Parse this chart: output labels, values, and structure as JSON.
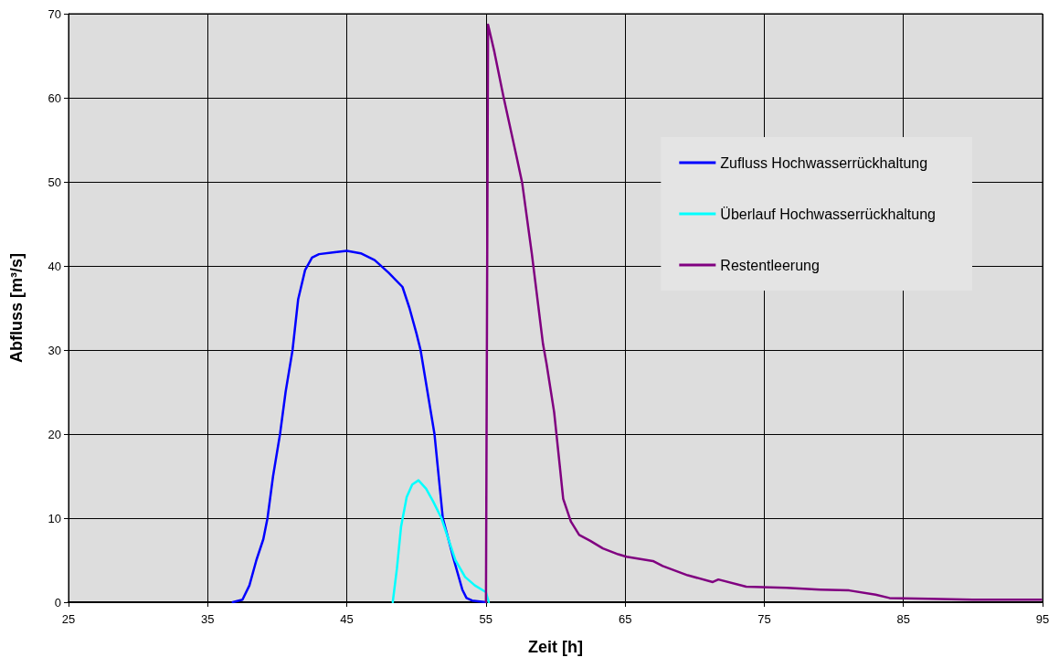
{
  "chart_data": {
    "type": "line",
    "xlabel": "Zeit [h]",
    "ylabel": "Abfluss [m³/s]",
    "xlim": [
      25,
      95
    ],
    "xticks": [
      25,
      35,
      45,
      55,
      65,
      75,
      85,
      95
    ],
    "ylim": [
      0,
      70
    ],
    "yticks": [
      0,
      10,
      20,
      30,
      40,
      50,
      60,
      70
    ],
    "grid": true,
    "legend": "right",
    "marker": "none",
    "line_style": "solid",
    "series": [
      {
        "name": "Zufluss Hochwasserrückhaltung",
        "color": "#0000ff",
        "x": [
          36.8,
          37.5,
          38,
          38.5,
          39,
          39.3,
          39.7,
          40.2,
          40.6,
          41.1,
          41.5,
          42,
          42.5,
          43,
          44,
          45,
          46,
          47,
          48,
          49,
          49.5,
          50,
          50.3,
          50.8,
          51.3,
          51.6,
          51.9,
          52.7,
          53.3,
          53.6,
          54,
          55
        ],
        "values": [
          0,
          0.3,
          2,
          5,
          7.5,
          10,
          15,
          20,
          25,
          30,
          36,
          39.5,
          41,
          41.4,
          41.6,
          41.8,
          41.5,
          40.7,
          39.2,
          37.5,
          35,
          32,
          30,
          25,
          20,
          15,
          10,
          5,
          1.5,
          0.5,
          0.2,
          0
        ]
      },
      {
        "name": "Überlauf Hochwasserrückhaltung",
        "color": "#00ffff",
        "x": [
          48.3,
          48.6,
          48.9,
          49.3,
          49.7,
          50.15,
          50.7,
          51.2,
          51.8,
          52.3,
          52.8,
          53.5,
          54.2,
          55,
          55.2
        ],
        "values": [
          0,
          4,
          9,
          12.5,
          14,
          14.5,
          13.5,
          12,
          10,
          7.5,
          5,
          3,
          2,
          1.2,
          0
        ]
      },
      {
        "name": "Restentleerung",
        "color": "#800080",
        "x": [
          55,
          55.15,
          55.6,
          56.25,
          57.2,
          57.6,
          58.3,
          59.1,
          59.35,
          59.9,
          60.3,
          60.55,
          61.1,
          61.7,
          62.5,
          63.4,
          64.5,
          65.1,
          67,
          67.7,
          69.5,
          71.3,
          71.7,
          73.7,
          76.6,
          79,
          81.1,
          83,
          84,
          86.8,
          90,
          94.9
        ],
        "values": [
          0,
          68.7,
          65.5,
          60.2,
          53,
          49.9,
          41.4,
          30.7,
          28.4,
          22.6,
          16.3,
          12.3,
          9.6,
          8,
          7.3,
          6.4,
          5.7,
          5.4,
          4.9,
          4.3,
          3.2,
          2.4,
          2.7,
          1.85,
          1.7,
          1.5,
          1.4,
          0.9,
          0.5,
          0.4,
          0.3,
          0.3
        ]
      }
    ]
  }
}
